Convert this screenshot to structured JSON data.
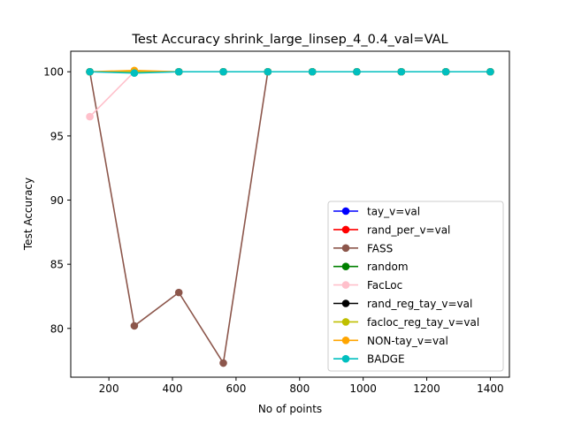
{
  "chart_data": {
    "type": "line",
    "title": "Test Accuracy shrink_large_linsep_4_0.4_val=VAL",
    "xlabel": "No of points",
    "ylabel": "Test Accuracy",
    "xlim": [
      80,
      1460
    ],
    "ylim": [
      76.2,
      101.6
    ],
    "xticks": [
      200,
      400,
      600,
      800,
      1000,
      1200,
      1400
    ],
    "yticks": [
      80,
      85,
      90,
      95,
      100
    ],
    "legend_position": "lower-right",
    "grid": false,
    "x": [
      140,
      280,
      420,
      560,
      700,
      840,
      980,
      1120,
      1260,
      1400
    ],
    "series": [
      {
        "name": "tay_v=val",
        "color": "#0000ff",
        "values": [
          100,
          100,
          100,
          100,
          100,
          100,
          100,
          100,
          100,
          100
        ]
      },
      {
        "name": "rand_per_v=val",
        "color": "#ff0000",
        "values": [
          100,
          100,
          100,
          100,
          100,
          100,
          100,
          100,
          100,
          100
        ]
      },
      {
        "name": "FASS",
        "color": "#8c564b",
        "values": [
          100,
          80.2,
          82.8,
          77.3,
          100,
          100,
          100,
          100,
          100,
          100
        ]
      },
      {
        "name": "random",
        "color": "#008000",
        "values": [
          100,
          100,
          100,
          100,
          100,
          100,
          100,
          100,
          100,
          100
        ]
      },
      {
        "name": "FacLoc",
        "color": "#ffc0cb",
        "values": [
          96.5,
          100,
          100,
          100,
          100,
          100,
          100,
          100,
          100,
          100
        ]
      },
      {
        "name": "rand_reg_tay_v=val",
        "color": "#000000",
        "values": [
          100,
          100,
          100,
          100,
          100,
          100,
          100,
          100,
          100,
          100
        ]
      },
      {
        "name": "facloc_reg_tay_v=val",
        "color": "#bfbf00",
        "values": [
          100,
          100,
          100,
          100,
          100,
          100,
          100,
          100,
          100,
          100
        ]
      },
      {
        "name": "NON-tay_v=val",
        "color": "#ffa500",
        "values": [
          100,
          100.1,
          100,
          100,
          100,
          100,
          100,
          100,
          100,
          100
        ]
      },
      {
        "name": "BADGE",
        "color": "#00bfbf",
        "values": [
          100,
          99.9,
          100,
          100,
          100,
          100,
          100,
          100,
          100,
          100
        ]
      }
    ]
  }
}
